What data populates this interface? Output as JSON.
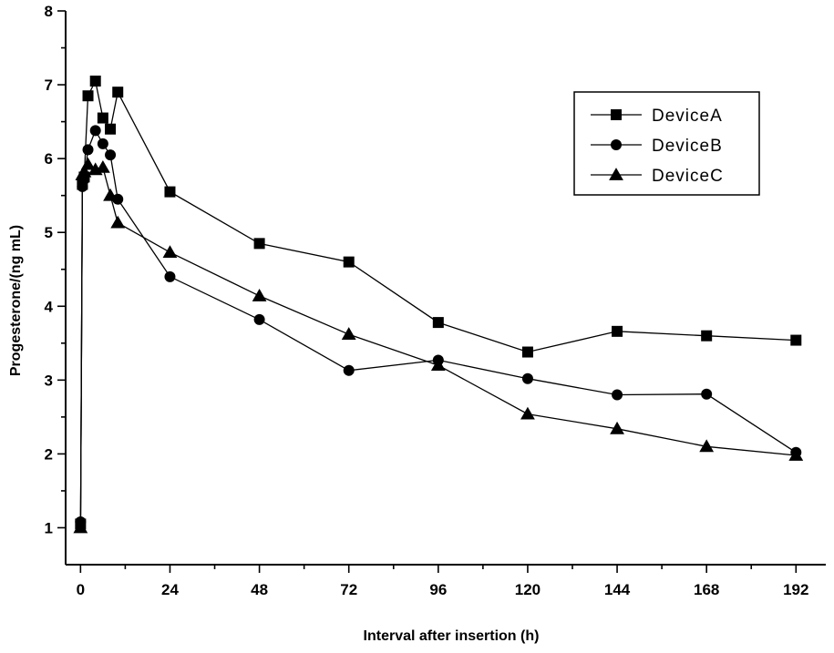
{
  "chart_data": {
    "type": "line",
    "title": "",
    "xlabel": "Interval after insertion (h)",
    "ylabel": "Progesterone/(ng mL)",
    "xlim": [
      -4,
      200
    ],
    "ylim": [
      0.5,
      8
    ],
    "xticks": [
      0,
      24,
      48,
      72,
      96,
      120,
      144,
      168,
      192
    ],
    "yticks": [
      1,
      2,
      3,
      4,
      5,
      6,
      7,
      8
    ],
    "grid": false,
    "legend_position": "top-right",
    "series": [
      {
        "name": "DeviceA",
        "marker": "square",
        "x": [
          0,
          0.5,
          1,
          2,
          4,
          6,
          8,
          10,
          24,
          48,
          72,
          96,
          120,
          144,
          168,
          192
        ],
        "y": [
          1.05,
          5.65,
          5.75,
          6.85,
          7.05,
          6.55,
          6.4,
          6.9,
          5.55,
          4.85,
          4.6,
          3.78,
          3.38,
          3.66,
          3.6,
          3.54
        ]
      },
      {
        "name": "DeviceB",
        "marker": "circle",
        "x": [
          0,
          0.5,
          1,
          2,
          4,
          6,
          8,
          10,
          24,
          48,
          72,
          96,
          120,
          144,
          168,
          192
        ],
        "y": [
          1.08,
          5.62,
          5.72,
          6.12,
          6.38,
          6.2,
          6.05,
          5.45,
          4.4,
          3.82,
          3.13,
          3.27,
          3.02,
          2.8,
          2.81,
          2.02
        ]
      },
      {
        "name": "DeviceC",
        "marker": "triangle",
        "x": [
          0,
          0.5,
          1,
          2,
          4,
          6,
          8,
          10,
          24,
          48,
          72,
          96,
          120,
          144,
          168,
          192
        ],
        "y": [
          1.0,
          5.78,
          5.82,
          5.92,
          5.85,
          5.88,
          5.5,
          5.13,
          4.73,
          4.14,
          3.62,
          3.2,
          2.54,
          2.34,
          2.1,
          1.98
        ]
      }
    ]
  }
}
